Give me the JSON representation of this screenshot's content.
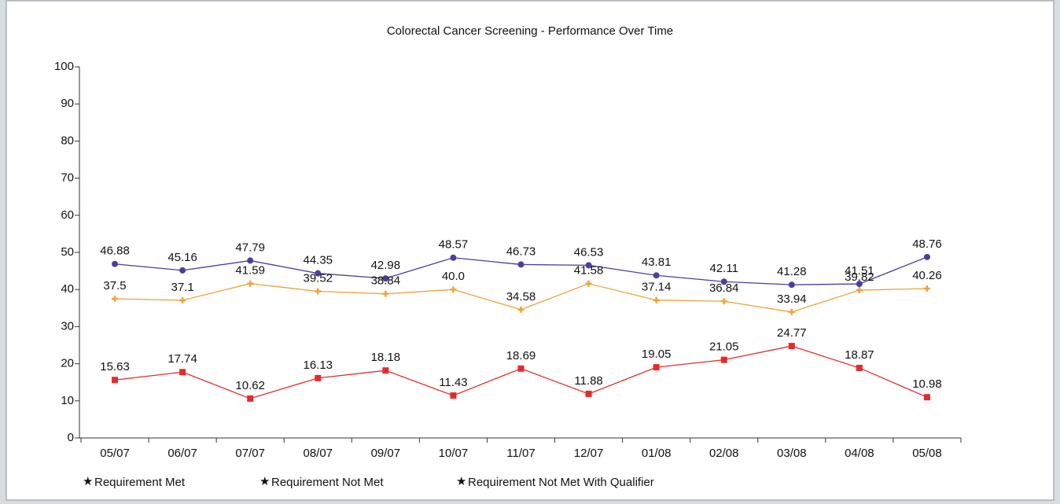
{
  "chart_data": {
    "type": "line",
    "title": "Colorectal Cancer Screening - Performance Over Time",
    "categories": [
      "05/07",
      "06/07",
      "07/07",
      "08/07",
      "09/07",
      "10/07",
      "11/07",
      "12/07",
      "01/08",
      "02/08",
      "03/08",
      "04/08",
      "05/08"
    ],
    "ylim": [
      0,
      100
    ],
    "yticks": [
      0,
      10,
      20,
      30,
      40,
      50,
      60,
      70,
      80,
      90,
      100
    ],
    "legend": "bottom",
    "series": [
      {
        "name": "Requirement Met",
        "color": "#4a3f9c",
        "marker": "circle",
        "values": [
          46.88,
          45.16,
          47.79,
          44.35,
          42.98,
          48.57,
          46.73,
          46.53,
          43.81,
          42.11,
          41.28,
          41.51,
          48.76
        ]
      },
      {
        "name": "Requirement Not Met",
        "color": "#f0a23a",
        "marker": "plus",
        "values": [
          37.5,
          37.1,
          41.59,
          39.52,
          38.84,
          40,
          34.58,
          41.58,
          37.14,
          36.84,
          33.94,
          39.82,
          40.26
        ],
        "value_labels": [
          "37.5",
          "37.1",
          "41.59",
          "39.52",
          "38.84",
          "40.0",
          "34.58",
          "41.58",
          "37.14",
          "36.84",
          "33.94",
          "39.82",
          "40.26"
        ]
      },
      {
        "name": "Requirement Not Met With Qualifier",
        "color": "#e62a2a",
        "marker": "square",
        "values": [
          15.63,
          17.74,
          10.62,
          16.13,
          18.18,
          11.43,
          18.69,
          11.88,
          19.05,
          21.05,
          24.77,
          18.87,
          10.98
        ]
      }
    ]
  }
}
